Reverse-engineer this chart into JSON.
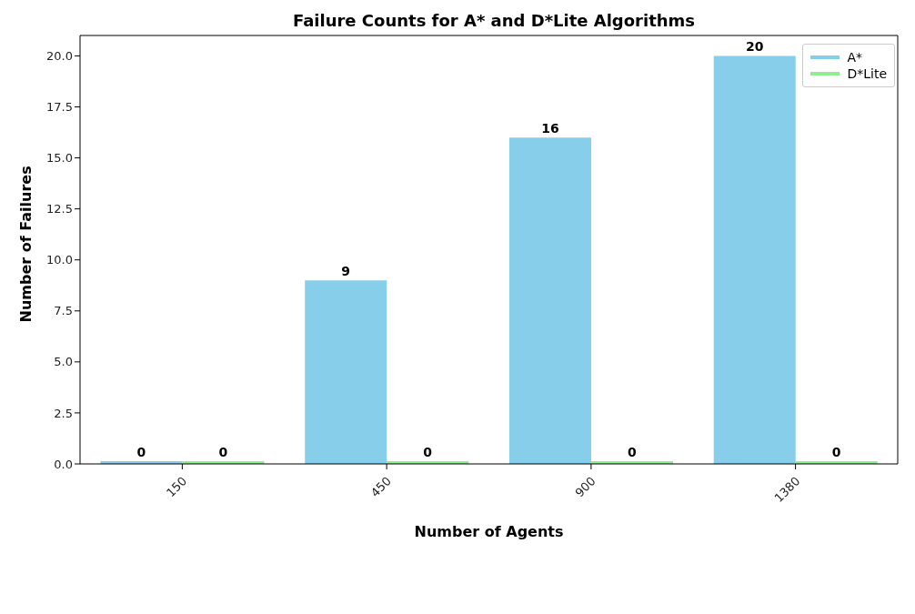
{
  "chart_data": {
    "type": "bar",
    "title": "Failure Counts for A* and D*Lite Algorithms",
    "xlabel": "Number of Agents",
    "ylabel": "Number of Failures",
    "categories": [
      "150",
      "450",
      "900",
      "1380"
    ],
    "series": [
      {
        "name": "A*",
        "color": "#87ceeb",
        "values": [
          0,
          9,
          16,
          20
        ]
      },
      {
        "name": "D*Lite",
        "color": "#90ee90",
        "values": [
          0,
          0,
          0,
          0
        ]
      }
    ],
    "ylim": [
      0,
      21
    ],
    "yticks": [
      {
        "value": 0,
        "label": "0.0"
      },
      2.5,
      {
        "value": 5,
        "label": "5.0"
      },
      7.5,
      {
        "value": 10,
        "label": "10.0"
      },
      12.5,
      {
        "value": 15,
        "label": "15.0"
      },
      17.5,
      {
        "value": 20,
        "label": "20.0"
      }
    ],
    "legend": "top right",
    "data_labels": true
  }
}
